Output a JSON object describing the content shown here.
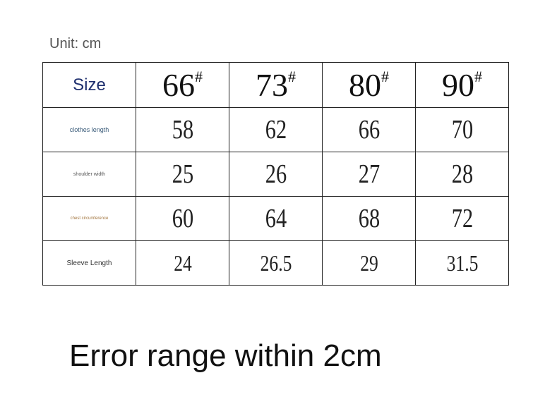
{
  "unit_label": "Unit: cm",
  "table": {
    "header": {
      "first": "Size",
      "sizes": [
        "66",
        "73",
        "80",
        "90"
      ],
      "suffix": "#"
    },
    "rows": [
      {
        "label": "clothes length",
        "values": [
          "58",
          "62",
          "66",
          "70"
        ]
      },
      {
        "label": "shoulder width",
        "values": [
          "25",
          "26",
          "27",
          "28"
        ]
      },
      {
        "label": "chest circumference",
        "values": [
          "60",
          "64",
          "68",
          "72"
        ]
      },
      {
        "label": "Sleeve Length",
        "values": [
          "24",
          "26.5",
          "29",
          "31.5"
        ]
      }
    ]
  },
  "note": "Error range within 2cm"
}
